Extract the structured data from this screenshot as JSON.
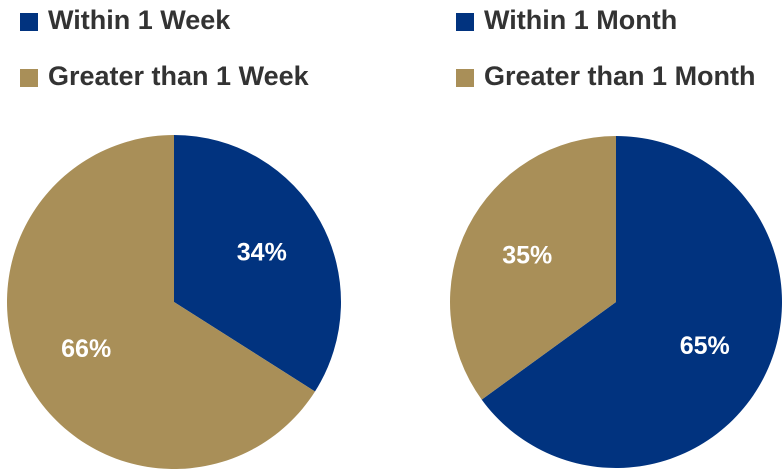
{
  "chart_data": [
    {
      "type": "pie",
      "categories": [
        "Within 1 Week",
        "Greater than 1 Week"
      ],
      "values": [
        34,
        66
      ],
      "value_labels": [
        "34%",
        "66%"
      ],
      "colors": [
        "#01337f",
        "#a98f58"
      ]
    },
    {
      "type": "pie",
      "categories": [
        "Within 1 Month",
        "Greater than 1 Month"
      ],
      "values": [
        65,
        35
      ],
      "value_labels": [
        "65%",
        "35%"
      ],
      "colors": [
        "#01337f",
        "#a98f58"
      ]
    }
  ]
}
